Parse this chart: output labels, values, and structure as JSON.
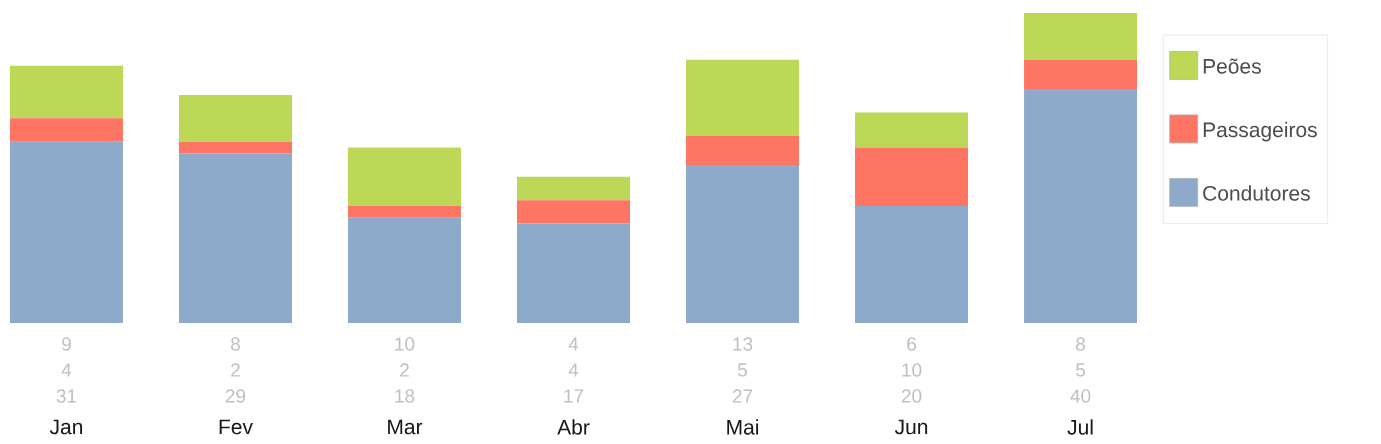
{
  "chart_data": {
    "type": "bar",
    "stacked": true,
    "data_labels": true,
    "legend": "right",
    "categories": [
      "Jan",
      "Fev",
      "Mar",
      "Abr",
      "Mai",
      "Jun",
      "Jul"
    ],
    "series": [
      {
        "name": "Condutores",
        "color": "#8eaacb",
        "values": [
          31,
          29,
          18,
          17,
          27,
          20,
          40
        ]
      },
      {
        "name": "Passageiros",
        "color": "#fe7563",
        "values": [
          4,
          2,
          2,
          4,
          5,
          10,
          5
        ]
      },
      {
        "name": "Peões",
        "color": "#bcd856",
        "values": [
          9,
          8,
          10,
          4,
          13,
          6,
          8
        ]
      }
    ]
  }
}
